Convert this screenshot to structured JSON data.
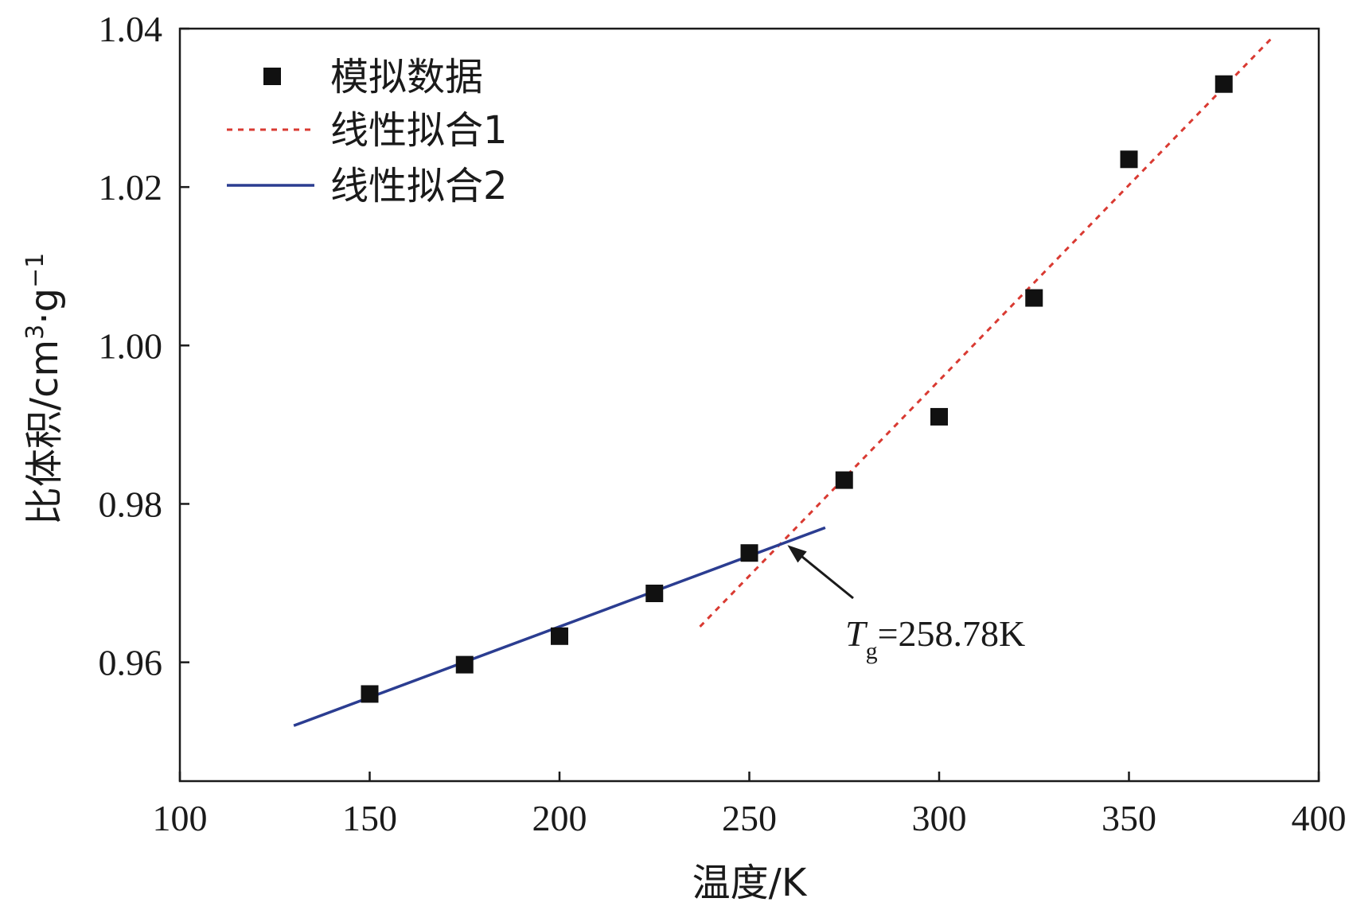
{
  "chart_data": {
    "type": "scatter",
    "xlabel": "温度/K",
    "ylabel_main": "比体积/cm",
    "ylabel_sup1": "3",
    "ylabel_mid": "·g",
    "ylabel_sup2": "−1",
    "xlim": [
      100,
      400
    ],
    "ylim": [
      0.945,
      1.04
    ],
    "x_ticks": [
      100,
      150,
      200,
      250,
      300,
      350,
      400
    ],
    "x_tick_labels": [
      "100",
      "150",
      "200",
      "250",
      "300",
      "350",
      "400"
    ],
    "y_ticks": [
      0.96,
      0.98,
      1.0,
      1.02,
      1.04
    ],
    "y_tick_labels": [
      "0.96",
      "0.98",
      "1.00",
      "1.02",
      "1.04"
    ],
    "grid": false,
    "legend_position": "top-left",
    "series": [
      {
        "name": "模拟数据",
        "kind": "markers",
        "marker": "square",
        "color": "#111111",
        "x": [
          150,
          175,
          200,
          225,
          250,
          275,
          300,
          325,
          350,
          375
        ],
        "y": [
          0.956,
          0.9597,
          0.9633,
          0.9687,
          0.9738,
          0.983,
          0.991,
          1.006,
          1.0235,
          1.033
        ]
      },
      {
        "name": "线性拟合1",
        "kind": "line",
        "style": "dotted",
        "color": "#d93a32",
        "x": [
          237,
          388
        ],
        "y": [
          0.9645,
          1.039
        ]
      },
      {
        "name": "线性拟合2",
        "kind": "line",
        "style": "solid",
        "color": "#2b3d91",
        "x": [
          130,
          270
        ],
        "y": [
          0.952,
          0.977
        ]
      }
    ],
    "annotation": {
      "text_main": "T",
      "text_sub": "g",
      "text_rest": "=258.78K",
      "point_x": 258.78,
      "point_y": 0.9752
    }
  }
}
